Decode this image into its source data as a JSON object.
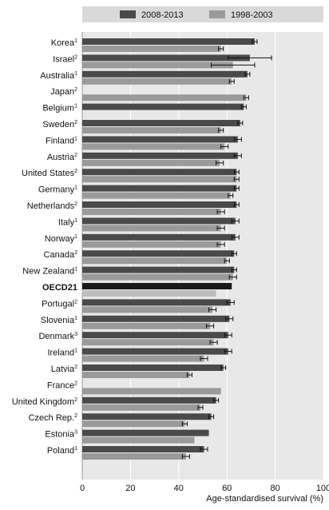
{
  "chart_data": {
    "type": "bar",
    "orientation": "horizontal",
    "categories": [
      {
        "name": "Korea",
        "note": "1"
      },
      {
        "name": "Israel",
        "note": "2"
      },
      {
        "name": "Australia",
        "note": "1"
      },
      {
        "name": "Japan",
        "note": "2"
      },
      {
        "name": "Belgium",
        "note": "1"
      },
      {
        "name": "Sweden",
        "note": "2"
      },
      {
        "name": "Finland",
        "note": "1"
      },
      {
        "name": "Austria",
        "note": "2"
      },
      {
        "name": "United States",
        "note": "2"
      },
      {
        "name": "Germany",
        "note": "1"
      },
      {
        "name": "Netherlands",
        "note": "2"
      },
      {
        "name": "Italy",
        "note": "1"
      },
      {
        "name": "Norway",
        "note": "1"
      },
      {
        "name": "Canada",
        "note": "2"
      },
      {
        "name": "New Zealand",
        "note": "1"
      },
      {
        "name": "OECD21",
        "note": ""
      },
      {
        "name": "Portugal",
        "note": "2"
      },
      {
        "name": "Slovenia",
        "note": "1"
      },
      {
        "name": "Denmark",
        "note": "3"
      },
      {
        "name": "Ireland",
        "note": "1"
      },
      {
        "name": "Latvia",
        "note": "2"
      },
      {
        "name": "France",
        "note": "2"
      },
      {
        "name": "United Kingdom",
        "note": "2"
      },
      {
        "name": "Czech Rep.",
        "note": "2"
      },
      {
        "name": "Estonia",
        "note": "3"
      },
      {
        "name": "Poland",
        "note": "1"
      }
    ],
    "series": [
      {
        "name": "2008-2013",
        "color": "#4a4a4a",
        "values": [
          71.5,
          69.5,
          68.5,
          null,
          67.0,
          65.5,
          64.5,
          64.5,
          64.0,
          64.0,
          64.0,
          63.5,
          63.5,
          63.0,
          63.0,
          62.0,
          61.5,
          61.0,
          60.5,
          60.5,
          58.5,
          null,
          55.5,
          53.5,
          52.5,
          50.5
        ],
        "error": [
          1.0,
          9.0,
          1.0,
          null,
          1.0,
          1.0,
          1.5,
          1.5,
          1.0,
          1.0,
          1.0,
          1.5,
          1.5,
          1.0,
          1.0,
          null,
          1.5,
          1.5,
          1.5,
          1.5,
          1.0,
          null,
          1.0,
          1.0,
          null,
          1.5
        ]
      },
      {
        "name": "1998-2003",
        "color": "#9a9a9a",
        "values": [
          57.5,
          62.5,
          62.0,
          68.0,
          null,
          57.5,
          59.0,
          57.0,
          64.0,
          61.5,
          57.5,
          57.5,
          57.5,
          60.0,
          62.5,
          55.5,
          54.0,
          53.0,
          54.5,
          50.5,
          44.5,
          57.5,
          49.0,
          42.5,
          46.5,
          43.0
        ],
        "error": [
          1.0,
          9.0,
          1.0,
          1.0,
          null,
          1.0,
          1.5,
          1.5,
          1.0,
          1.0,
          1.5,
          1.5,
          1.5,
          1.0,
          1.5,
          null,
          1.5,
          1.5,
          1.5,
          1.5,
          1.0,
          null,
          1.0,
          1.0,
          null,
          1.5
        ]
      }
    ],
    "xlim": [
      0,
      100
    ],
    "xticks": [
      "0",
      "20",
      "40",
      "60",
      "80",
      "100"
    ],
    "xlabel": "Age-standardised survival (%)",
    "legend_position": "top",
    "grid": true,
    "highlight_category": "OECD21",
    "plot_background": "#e8e8e8"
  }
}
